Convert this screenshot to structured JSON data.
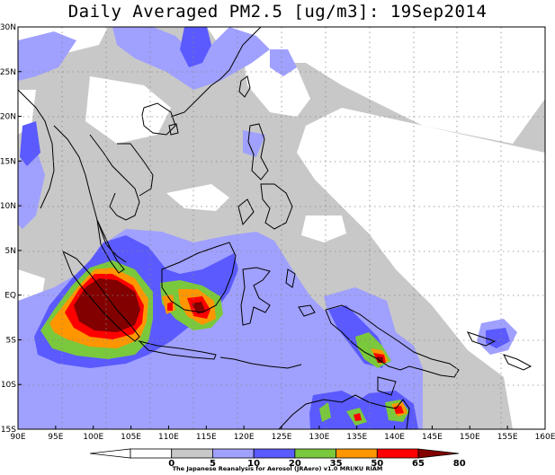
{
  "title": "Daily Averaged PM2.5 [ug/m3]: 19Sep2014",
  "x_ticks": [
    "90E",
    "95E",
    "100E",
    "105E",
    "110E",
    "115E",
    "120E",
    "125E",
    "130E",
    "135E",
    "140E",
    "145E",
    "150E",
    "155E",
    "160E"
  ],
  "y_ticks": [
    "30N",
    "25N",
    "20N",
    "15N",
    "10N",
    "5N",
    "EQ",
    "5S",
    "10S",
    "15S"
  ],
  "colorbar": {
    "labels": [
      "0",
      "5",
      "10",
      "20",
      "35",
      "50",
      "65",
      "80"
    ],
    "colors": [
      "#ffffff",
      "#ffffff",
      "#c8c8c8",
      "#a0a0ff",
      "#5a5aff",
      "#7ac83c",
      "#ff9600",
      "#ff0000",
      "#820000"
    ]
  },
  "level_colors": {
    "gray": "#c8c8c8",
    "light_blue": "#a0a0ff",
    "blue": "#5a5aff",
    "green": "#7ac83c",
    "orange": "#ff9600",
    "red": "#ff0000",
    "dark_red": "#820000"
  },
  "credit": "The Japanese Reanalysis for Aerosol (JRAero) v1.0 MRI/KU RIAM"
}
